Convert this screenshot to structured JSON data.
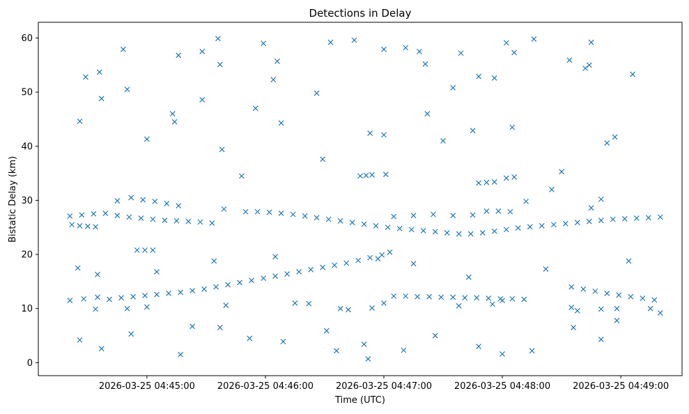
{
  "chart_data": {
    "type": "scatter",
    "title": "Detections in Delay",
    "xlabel": "Time (UTC)",
    "ylabel": "Bistatic Delay (km)",
    "marker": "x",
    "color": "#1f77b4",
    "grid": false,
    "x_ticks": [
      {
        "value": "2026-03-25 04:45:00",
        "label": "2026-03-25 04:45:00"
      },
      {
        "value": "2026-03-25 04:46:00",
        "label": "2026-03-25 04:46:00"
      },
      {
        "value": "2026-03-25 04:47:00",
        "label": "2026-03-25 04:47:00"
      },
      {
        "value": "2026-03-25 04:48:00",
        "label": "2026-03-25 04:48:00"
      },
      {
        "value": "2026-03-25 04:49:00",
        "label": "2026-03-25 04:49:00"
      }
    ],
    "xlim": [
      "2026-03-25 04:44:05",
      "2026-03-25 04:49:31"
    ],
    "y_ticks": [
      0,
      10,
      20,
      30,
      40,
      50,
      60
    ],
    "ylim": [
      -2.4,
      62.9
    ],
    "series": [
      {
        "points": [
          [
            "04:44:21",
            27.1
          ],
          [
            "04:44:27",
            27.3
          ],
          [
            "04:44:33",
            27.5
          ],
          [
            "04:44:39",
            27.6
          ],
          [
            "04:44:45",
            27.2
          ],
          [
            "04:44:51",
            26.9
          ],
          [
            "04:44:57",
            26.7
          ],
          [
            "04:45:03",
            26.5
          ],
          [
            "04:45:09",
            26.3
          ],
          [
            "04:45:15",
            26.2
          ],
          [
            "04:45:21",
            26.1
          ],
          [
            "04:45:27",
            26.0
          ],
          [
            "04:45:33",
            25.8
          ],
          [
            "04:45:39",
            28.4
          ],
          [
            "04:44:22",
            25.5
          ],
          [
            "04:44:26",
            25.3
          ],
          [
            "04:44:30",
            25.2
          ],
          [
            "04:44:34",
            25.1
          ],
          [
            "04:44:45",
            29.9
          ],
          [
            "04:44:52",
            30.5
          ],
          [
            "04:44:58",
            30.1
          ],
          [
            "04:45:04",
            29.8
          ],
          [
            "04:45:10",
            29.4
          ],
          [
            "04:45:16",
            29.0
          ],
          [
            "04:44:55",
            20.8
          ],
          [
            "04:44:59",
            20.8
          ],
          [
            "04:45:03",
            20.8
          ],
          [
            "04:45:50",
            27.9
          ],
          [
            "04:45:56",
            27.9
          ],
          [
            "04:46:02",
            27.8
          ],
          [
            "04:46:08",
            27.6
          ],
          [
            "04:46:14",
            27.4
          ],
          [
            "04:46:20",
            27.1
          ],
          [
            "04:46:26",
            26.8
          ],
          [
            "04:46:32",
            26.5
          ],
          [
            "04:46:38",
            26.2
          ],
          [
            "04:46:44",
            25.9
          ],
          [
            "04:46:50",
            25.6
          ],
          [
            "04:46:56",
            25.3
          ],
          [
            "04:47:02",
            25.0
          ],
          [
            "04:47:08",
            24.8
          ],
          [
            "04:47:14",
            24.6
          ],
          [
            "04:47:20",
            24.4
          ],
          [
            "04:47:26",
            24.2
          ],
          [
            "04:47:32",
            24.0
          ],
          [
            "04:47:38",
            23.8
          ],
          [
            "04:47:44",
            23.8
          ],
          [
            "04:47:50",
            24.0
          ],
          [
            "04:47:56",
            24.3
          ],
          [
            "04:48:02",
            24.6
          ],
          [
            "04:48:08",
            24.9
          ],
          [
            "04:48:14",
            25.1
          ],
          [
            "04:48:20",
            25.3
          ],
          [
            "04:48:26",
            25.5
          ],
          [
            "04:48:32",
            25.7
          ],
          [
            "04:48:38",
            25.9
          ],
          [
            "04:48:44",
            26.1
          ],
          [
            "04:48:50",
            26.3
          ],
          [
            "04:48:56",
            26.5
          ],
          [
            "04:49:02",
            26.6
          ],
          [
            "04:49:08",
            26.7
          ],
          [
            "04:49:14",
            26.8
          ],
          [
            "04:49:20",
            26.9
          ],
          [
            "04:47:05",
            27.0
          ],
          [
            "04:47:15",
            27.2
          ],
          [
            "04:47:25",
            27.4
          ],
          [
            "04:47:35",
            27.2
          ],
          [
            "04:47:45",
            27.3
          ],
          [
            "04:47:52",
            28.0
          ],
          [
            "04:47:58",
            28.0
          ],
          [
            "04:48:04",
            27.9
          ],
          [
            "04:47:48",
            33.2
          ],
          [
            "04:47:52",
            33.3
          ],
          [
            "04:47:56",
            33.4
          ],
          [
            "04:48:02",
            34.1
          ],
          [
            "04:48:06",
            34.3
          ],
          [
            "04:46:48",
            34.5
          ],
          [
            "04:46:51",
            34.6
          ],
          [
            "04:46:54",
            34.7
          ],
          [
            "04:47:01",
            34.8
          ],
          [
            "04:48:12",
            29.8
          ],
          [
            "04:48:25",
            32.0
          ],
          [
            "04:48:45",
            28.6
          ],
          [
            "04:48:50",
            30.2
          ],
          [
            "04:44:21",
            11.5
          ],
          [
            "04:44:28",
            11.8
          ],
          [
            "04:44:35",
            12.1
          ],
          [
            "04:44:41",
            11.7
          ],
          [
            "04:44:47",
            12.0
          ],
          [
            "04:44:53",
            12.2
          ],
          [
            "04:44:59",
            12.4
          ],
          [
            "04:45:05",
            12.6
          ],
          [
            "04:45:11",
            12.8
          ],
          [
            "04:45:17",
            13.0
          ],
          [
            "04:45:23",
            13.3
          ],
          [
            "04:45:29",
            13.6
          ],
          [
            "04:45:35",
            14.0
          ],
          [
            "04:45:41",
            14.4
          ],
          [
            "04:45:47",
            14.8
          ],
          [
            "04:45:53",
            15.2
          ],
          [
            "04:45:59",
            15.6
          ],
          [
            "04:46:05",
            16.0
          ],
          [
            "04:46:11",
            16.4
          ],
          [
            "04:46:17",
            16.8
          ],
          [
            "04:46:23",
            17.2
          ],
          [
            "04:46:29",
            17.6
          ],
          [
            "04:46:35",
            18.0
          ],
          [
            "04:46:41",
            18.4
          ],
          [
            "04:46:47",
            18.9
          ],
          [
            "04:46:53",
            19.4
          ],
          [
            "04:46:59",
            19.9
          ],
          [
            "04:47:03",
            20.4
          ],
          [
            "04:47:05",
            12.3
          ],
          [
            "04:47:11",
            12.3
          ],
          [
            "04:47:17",
            12.2
          ],
          [
            "04:47:23",
            12.2
          ],
          [
            "04:47:29",
            12.1
          ],
          [
            "04:47:35",
            12.1
          ],
          [
            "04:47:41",
            12.0
          ],
          [
            "04:47:47",
            12.0
          ],
          [
            "04:47:53",
            11.9
          ],
          [
            "04:47:59",
            11.8
          ],
          [
            "04:48:05",
            11.8
          ],
          [
            "04:48:11",
            11.7
          ],
          [
            "04:48:35",
            14.0
          ],
          [
            "04:48:41",
            13.6
          ],
          [
            "04:48:47",
            13.2
          ],
          [
            "04:48:53",
            12.8
          ],
          [
            "04:48:59",
            12.5
          ],
          [
            "04:49:05",
            12.2
          ],
          [
            "04:49:11",
            11.9
          ],
          [
            "04:49:17",
            11.6
          ],
          [
            "04:44:34",
            9.9
          ],
          [
            "04:44:50",
            10.0
          ],
          [
            "04:45:00",
            10.3
          ],
          [
            "04:45:40",
            10.6
          ],
          [
            "04:46:15",
            11.0
          ],
          [
            "04:46:22",
            10.9
          ],
          [
            "04:46:38",
            10.0
          ],
          [
            "04:46:42",
            9.8
          ],
          [
            "04:46:54",
            10.1
          ],
          [
            "04:47:00",
            11.0
          ],
          [
            "04:47:38",
            10.5
          ],
          [
            "04:47:55",
            10.8
          ],
          [
            "04:48:00",
            11.5
          ],
          [
            "04:48:35",
            10.2
          ],
          [
            "04:48:38",
            9.6
          ],
          [
            "04:48:50",
            9.9
          ],
          [
            "04:48:58",
            10.0
          ],
          [
            "04:49:15",
            10.0
          ],
          [
            "04:49:20",
            9.2
          ],
          [
            "04:44:26",
            44.6
          ],
          [
            "04:44:29",
            52.8
          ],
          [
            "04:44:36",
            53.7
          ],
          [
            "04:44:37",
            48.8
          ],
          [
            "04:44:48",
            57.9
          ],
          [
            "04:44:50",
            50.5
          ],
          [
            "04:45:00",
            41.3
          ],
          [
            "04:45:13",
            46.0
          ],
          [
            "04:45:16",
            56.8
          ],
          [
            "04:45:28",
            57.5
          ],
          [
            "04:45:36",
            59.9
          ],
          [
            "04:45:37",
            55.1
          ],
          [
            "04:45:55",
            47.0
          ],
          [
            "04:45:59",
            59.0
          ],
          [
            "04:46:04",
            52.3
          ],
          [
            "04:46:06",
            55.7
          ],
          [
            "04:46:26",
            49.8
          ],
          [
            "04:46:33",
            59.2
          ],
          [
            "04:46:45",
            59.6
          ],
          [
            "04:47:00",
            57.9
          ],
          [
            "04:47:11",
            58.2
          ],
          [
            "04:47:18",
            57.5
          ],
          [
            "04:47:21",
            55.2
          ],
          [
            "04:47:35",
            50.8
          ],
          [
            "04:47:39",
            57.2
          ],
          [
            "04:47:48",
            52.9
          ],
          [
            "04:47:56",
            52.6
          ],
          [
            "04:48:02",
            59.1
          ],
          [
            "04:48:06",
            57.3
          ],
          [
            "04:48:16",
            59.8
          ],
          [
            "04:48:34",
            55.9
          ],
          [
            "04:48:42",
            54.4
          ],
          [
            "04:48:44",
            55.0
          ],
          [
            "04:48:45",
            59.2
          ],
          [
            "04:49:06",
            53.3
          ],
          [
            "04:45:14",
            44.5
          ],
          [
            "04:45:28",
            48.6
          ],
          [
            "04:45:38",
            39.4
          ],
          [
            "04:45:48",
            34.5
          ],
          [
            "04:46:08",
            44.3
          ],
          [
            "04:46:29",
            37.6
          ],
          [
            "04:46:53",
            42.4
          ],
          [
            "04:47:00",
            42.1
          ],
          [
            "04:47:22",
            46.0
          ],
          [
            "04:47:30",
            41.0
          ],
          [
            "04:47:45",
            42.9
          ],
          [
            "04:48:05",
            43.5
          ],
          [
            "04:48:30",
            35.3
          ],
          [
            "04:48:53",
            40.6
          ],
          [
            "04:48:57",
            41.7
          ],
          [
            "04:44:25",
            17.5
          ],
          [
            "04:44:26",
            4.2
          ],
          [
            "04:44:35",
            16.3
          ],
          [
            "04:44:37",
            2.6
          ],
          [
            "04:44:52",
            5.3
          ],
          [
            "04:45:17",
            1.5
          ],
          [
            "04:45:23",
            6.7
          ],
          [
            "04:45:37",
            6.5
          ],
          [
            "04:45:52",
            4.5
          ],
          [
            "04:46:09",
            3.9
          ],
          [
            "04:46:31",
            5.9
          ],
          [
            "04:46:36",
            2.2
          ],
          [
            "04:46:50",
            3.4
          ],
          [
            "04:46:52",
            0.7
          ],
          [
            "04:47:10",
            2.3
          ],
          [
            "04:47:26",
            5.0
          ],
          [
            "04:47:48",
            3.0
          ],
          [
            "04:48:00",
            1.6
          ],
          [
            "04:48:15",
            2.2
          ],
          [
            "04:48:36",
            6.5
          ],
          [
            "04:48:50",
            4.3
          ],
          [
            "04:48:58",
            7.8
          ],
          [
            "04:45:05",
            16.8
          ],
          [
            "04:45:34",
            18.8
          ],
          [
            "04:46:05",
            19.6
          ],
          [
            "04:46:57",
            19.2
          ],
          [
            "04:47:15",
            18.3
          ],
          [
            "04:47:43",
            15.8
          ],
          [
            "04:48:22",
            17.3
          ],
          [
            "04:49:04",
            18.8
          ]
        ]
      }
    ]
  }
}
